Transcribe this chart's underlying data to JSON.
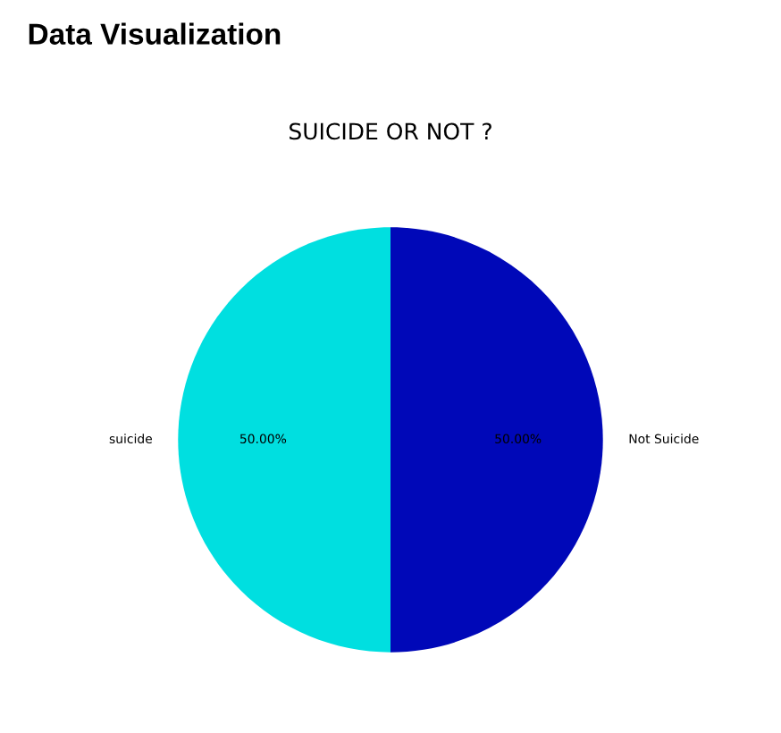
{
  "chart_data": {
    "type": "pie",
    "title": "Data Visualization",
    "subtitle": "SUICIDE OR NOT ?",
    "categories": [
      "suicide",
      "Not Suicide"
    ],
    "values": [
      50,
      50
    ],
    "colors": [
      "#00dfe0",
      "#0008b8"
    ],
    "value_labels": [
      "50.00%",
      "50.00%"
    ],
    "legend": false
  }
}
